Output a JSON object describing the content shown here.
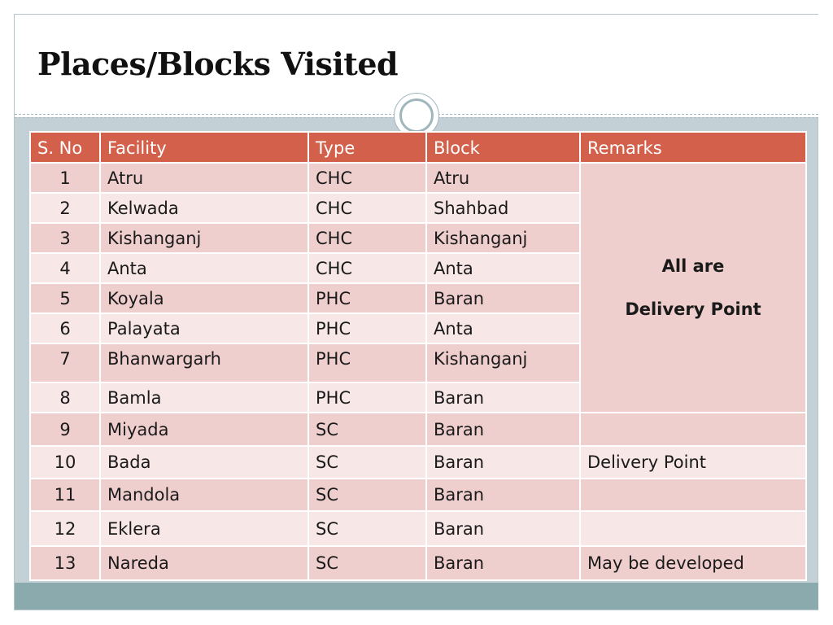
{
  "title": "Places/Blocks Visited",
  "table": {
    "headers": [
      "S. No",
      "Facility",
      "Type",
      "Block",
      "Remarks"
    ],
    "rows": [
      {
        "sno": "1",
        "facility": "Atru",
        "type": "CHC",
        "block": "Atru"
      },
      {
        "sno": "2",
        "facility": "Kelwada",
        "type": "CHC",
        "block": "Shahbad"
      },
      {
        "sno": "3",
        "facility": "Kishanganj",
        "type": "CHC",
        "block": "Kishanganj"
      },
      {
        "sno": "4",
        "facility": "Anta",
        "type": "CHC",
        "block": "Anta"
      },
      {
        "sno": "5",
        "facility": "Koyala",
        "type": "PHC",
        "block": "Baran"
      },
      {
        "sno": "6",
        "facility": "Palayata",
        "type": "PHC",
        "block": "Anta"
      },
      {
        "sno": "7",
        "facility": "Bhanwargarh",
        "type": "PHC",
        "block": "Kishanganj"
      },
      {
        "sno": "8",
        "facility": "Bamla",
        "type": "PHC",
        "block": "Baran"
      },
      {
        "sno": "9",
        "facility": "Miyada",
        "type": "SC",
        "block": "Baran",
        "remarks": ""
      },
      {
        "sno": "10",
        "facility": "Bada",
        "type": "SC",
        "block": "Baran",
        "remarks": "Delivery Point"
      },
      {
        "sno": "11",
        "facility": "Mandola",
        "type": "SC",
        "block": "Baran",
        "remarks": ""
      },
      {
        "sno": "12",
        "facility": "Eklera",
        "type": "SC",
        "block": "Baran",
        "remarks": ""
      },
      {
        "sno": "13",
        "facility": "Nareda",
        "type": "SC",
        "block": "Baran",
        "remarks": "May be developed"
      }
    ],
    "merged_remarks": {
      "line1": "All are",
      "line2": "Delivery Point"
    }
  },
  "colors": {
    "header_bg": "#d3604a",
    "row_odd": "#efcfcd",
    "row_even": "#f7e7e6",
    "frame_bg": "#c3d1d6",
    "bottom_band": "#8aaaae"
  }
}
